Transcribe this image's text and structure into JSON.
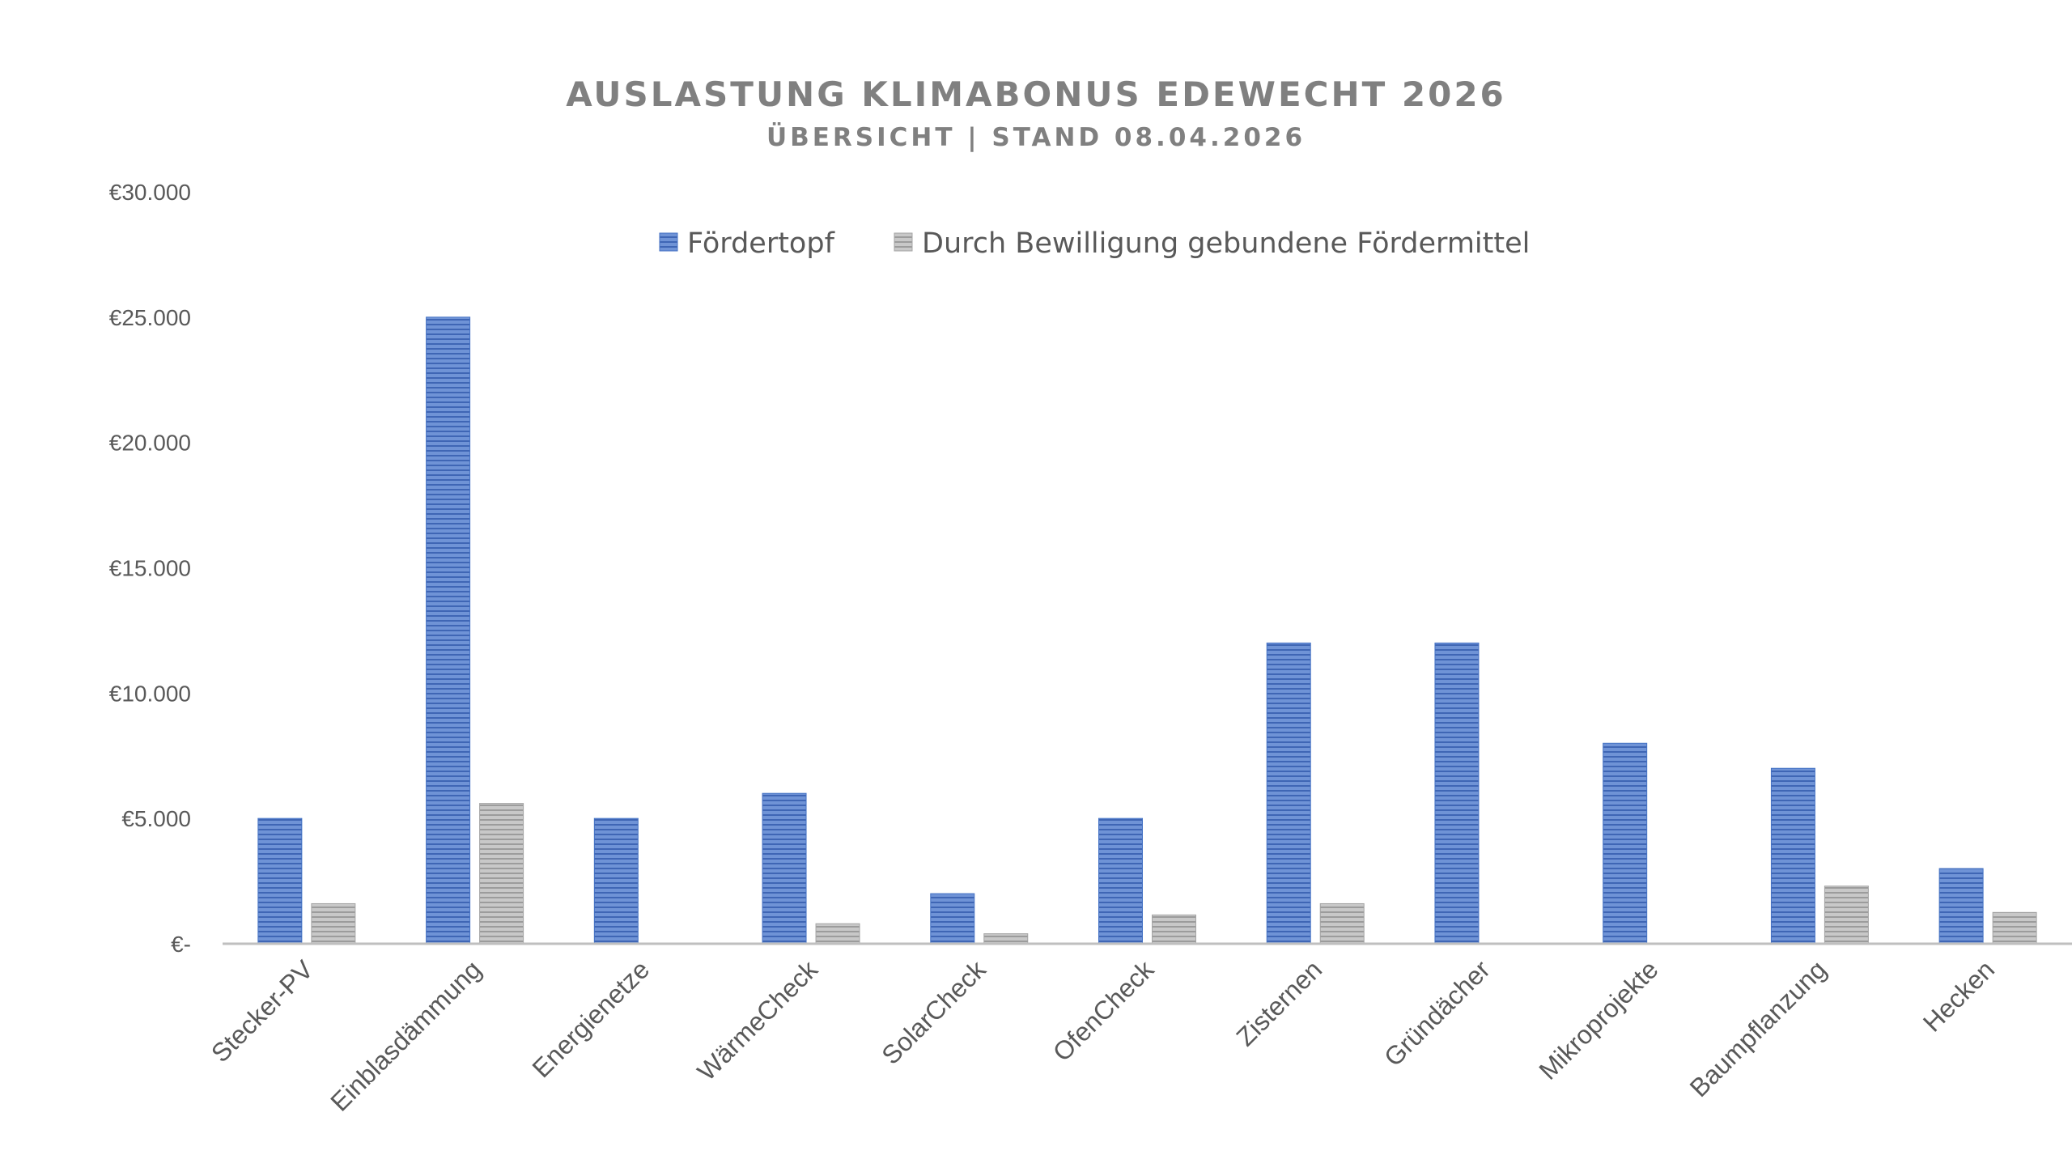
{
  "chart_data": {
    "type": "bar",
    "title": "AUSLASTUNG KLIMABONUS EDEWECHT 2026",
    "subtitle": "ÜBERSICHT | STAND 08.04.2026",
    "categories": [
      "Stecker-PV",
      "Einblasdämmung",
      "Energienetze",
      "WärmeCheck",
      "SolarCheck",
      "OfenCheck",
      "Zisternen",
      "Gründächer",
      "Mikroprojekte",
      "Baumpflanzung",
      "Hecken"
    ],
    "series": [
      {
        "name": "Fördertopf",
        "color": "#4472C4",
        "values": [
          5000,
          25000,
          5000,
          6000,
          2000,
          5000,
          12000,
          12000,
          8000,
          7000,
          3000
        ]
      },
      {
        "name": "Durch Bewilligung gebundene Fördermittel",
        "color": "#A5A5A5",
        "values": [
          1600,
          5600,
          0,
          800,
          400,
          1150,
          1600,
          0,
          0,
          2300,
          1250
        ]
      }
    ],
    "yticks": [
      "€-",
      "€5.000",
      "€10.000",
      "€15.000",
      "€20.000",
      "€25.000",
      "€30.000"
    ],
    "ylim": [
      0,
      30000
    ],
    "xlabel": "",
    "ylabel": "",
    "grid": false,
    "legend_position": "top"
  }
}
